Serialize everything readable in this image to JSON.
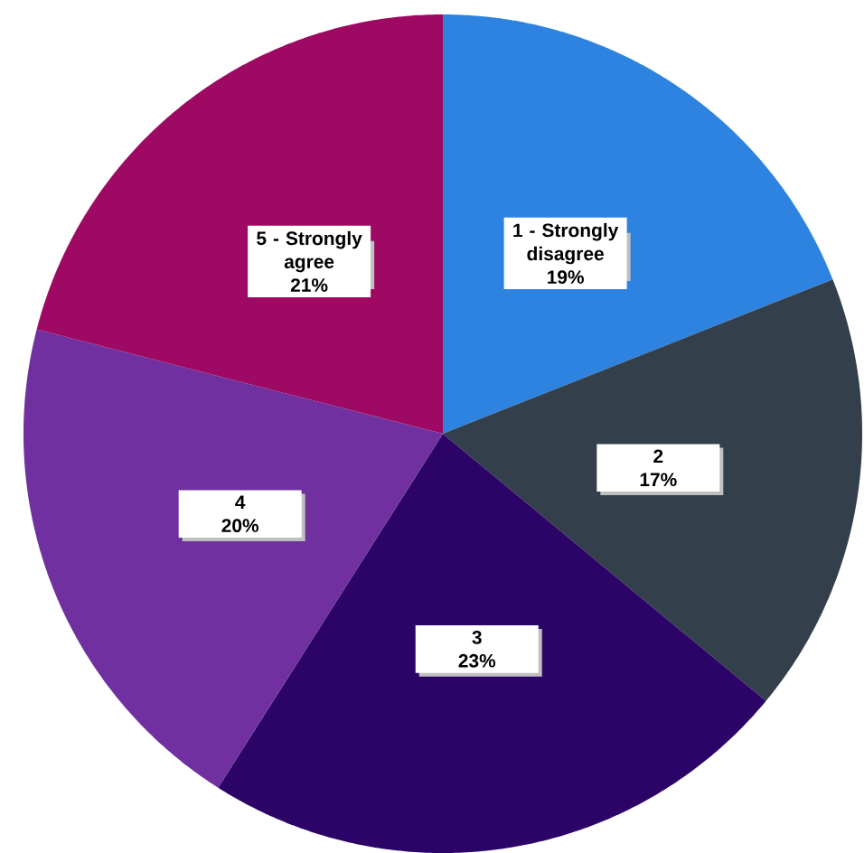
{
  "chart_data": {
    "type": "pie",
    "categories": [
      "1 - Strongly disagree",
      "2",
      "3",
      "4",
      "5 - Strongly agree"
    ],
    "values": [
      19,
      17,
      23,
      20,
      21
    ],
    "value_labels": [
      "19%",
      "17%",
      "23%",
      "20%",
      "21%"
    ],
    "colors": [
      "#2E83E0",
      "#333F4A",
      "#2C0468",
      "#7030A0",
      "#9E0A63"
    ]
  }
}
